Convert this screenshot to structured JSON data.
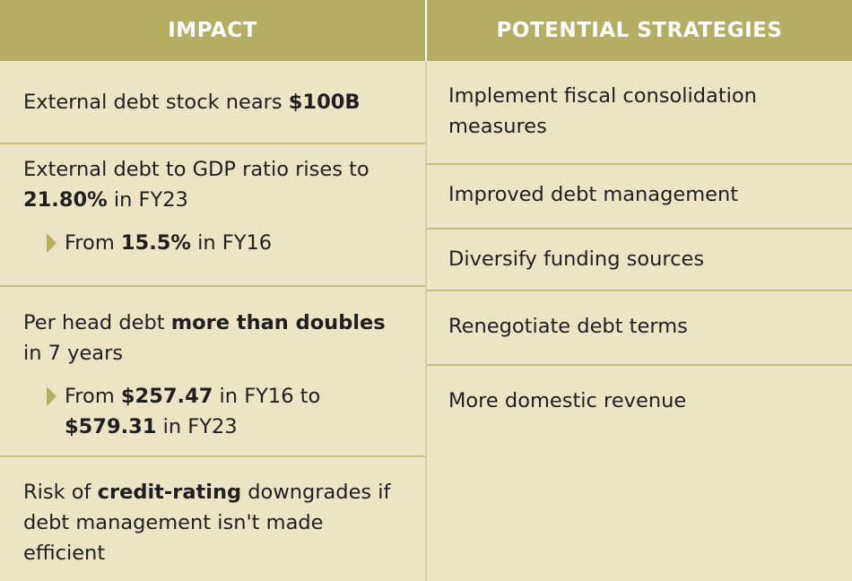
{
  "headers": {
    "impact": "IMPACT",
    "strategies": "POTENTIAL STRATEGIES"
  },
  "colors": {
    "header": "#b5ad62",
    "body": "#ebe4c5",
    "divider": "#c6bd7e"
  },
  "impact": [
    {
      "main": [
        {
          "t": "External debt stock nears "
        },
        {
          "t": "$100B",
          "b": true
        }
      ]
    },
    {
      "main": [
        {
          "t": "External debt to GDP ratio rises to "
        },
        {
          "t": "21.80%",
          "b": true
        },
        {
          "t": " in FY23"
        }
      ],
      "sub": [
        {
          "t": "From "
        },
        {
          "t": "15.5%",
          "b": true
        },
        {
          "t": " in FY16"
        }
      ]
    },
    {
      "main": [
        {
          "t": "Per head debt "
        },
        {
          "t": "more than doubles",
          "b": true
        },
        {
          "t": " in 7 years"
        }
      ],
      "sub": [
        {
          "t": "From "
        },
        {
          "t": "$257.47",
          "b": true
        },
        {
          "t": " in FY16 to "
        },
        {
          "t": "$579.31",
          "b": true
        },
        {
          "t": " in FY23"
        }
      ]
    },
    {
      "main": [
        {
          "t": "Risk of "
        },
        {
          "t": "credit-rating",
          "b": true
        },
        {
          "t": " downgrades if debt management isn't made efficient"
        }
      ]
    }
  ],
  "strategies": [
    "Implement fiscal consolidation measures",
    "Improved debt management",
    "Diversify funding sources",
    "Renegotiate debt terms",
    "More domestic revenue"
  ]
}
